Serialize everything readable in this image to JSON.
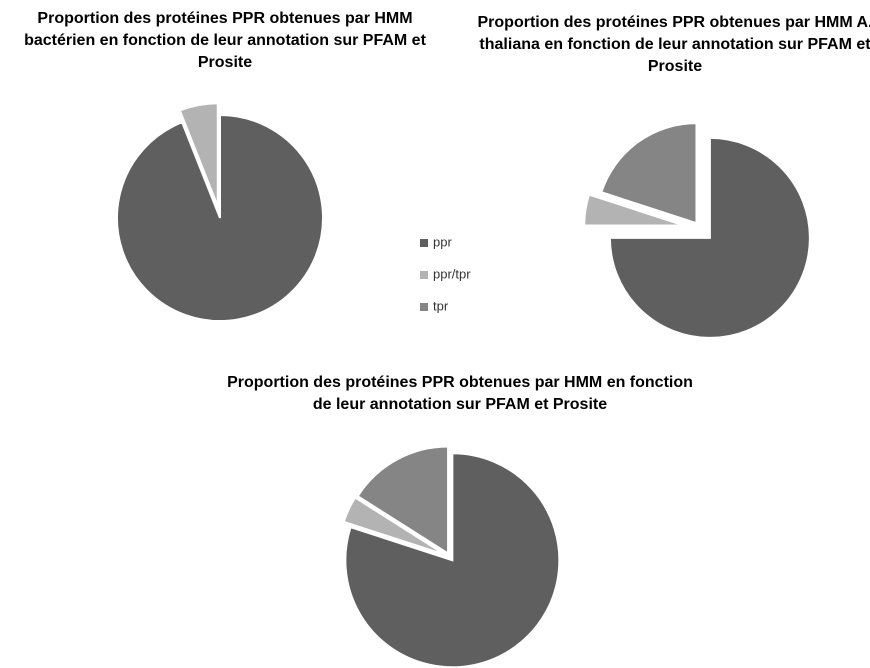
{
  "chart_data": [
    {
      "type": "pie",
      "title": "Proportion des protéines PPR obtenues par HMM bactérien en fonction de leur annotation sur PFAM et Prosite",
      "categories": [
        "ppr",
        "ppr/tpr",
        "tpr"
      ],
      "values": [
        94,
        6,
        0
      ],
      "colors": [
        "#5f5f5f",
        "#b3b3b3",
        "#858585"
      ],
      "legend": "right"
    },
    {
      "type": "pie",
      "title": "Proportion des protéines PPR obtenues par HMM A. thaliana en fonction de leur annotation sur PFAM et Prosite",
      "categories": [
        "ppr",
        "ppr/tpr",
        "tpr"
      ],
      "values": [
        75,
        5,
        20
      ],
      "colors": [
        "#5f5f5f",
        "#b3b3b3",
        "#858585"
      ]
    },
    {
      "type": "pie",
      "title": "Proportion des protéines PPR obtenues par HMM en fonction de leur annotation sur PFAM et Prosite",
      "categories": [
        "ppr",
        "ppr/tpr",
        "tpr"
      ],
      "values": [
        80,
        4,
        16
      ],
      "colors": [
        "#5f5f5f",
        "#b3b3b3",
        "#858585"
      ]
    }
  ]
}
